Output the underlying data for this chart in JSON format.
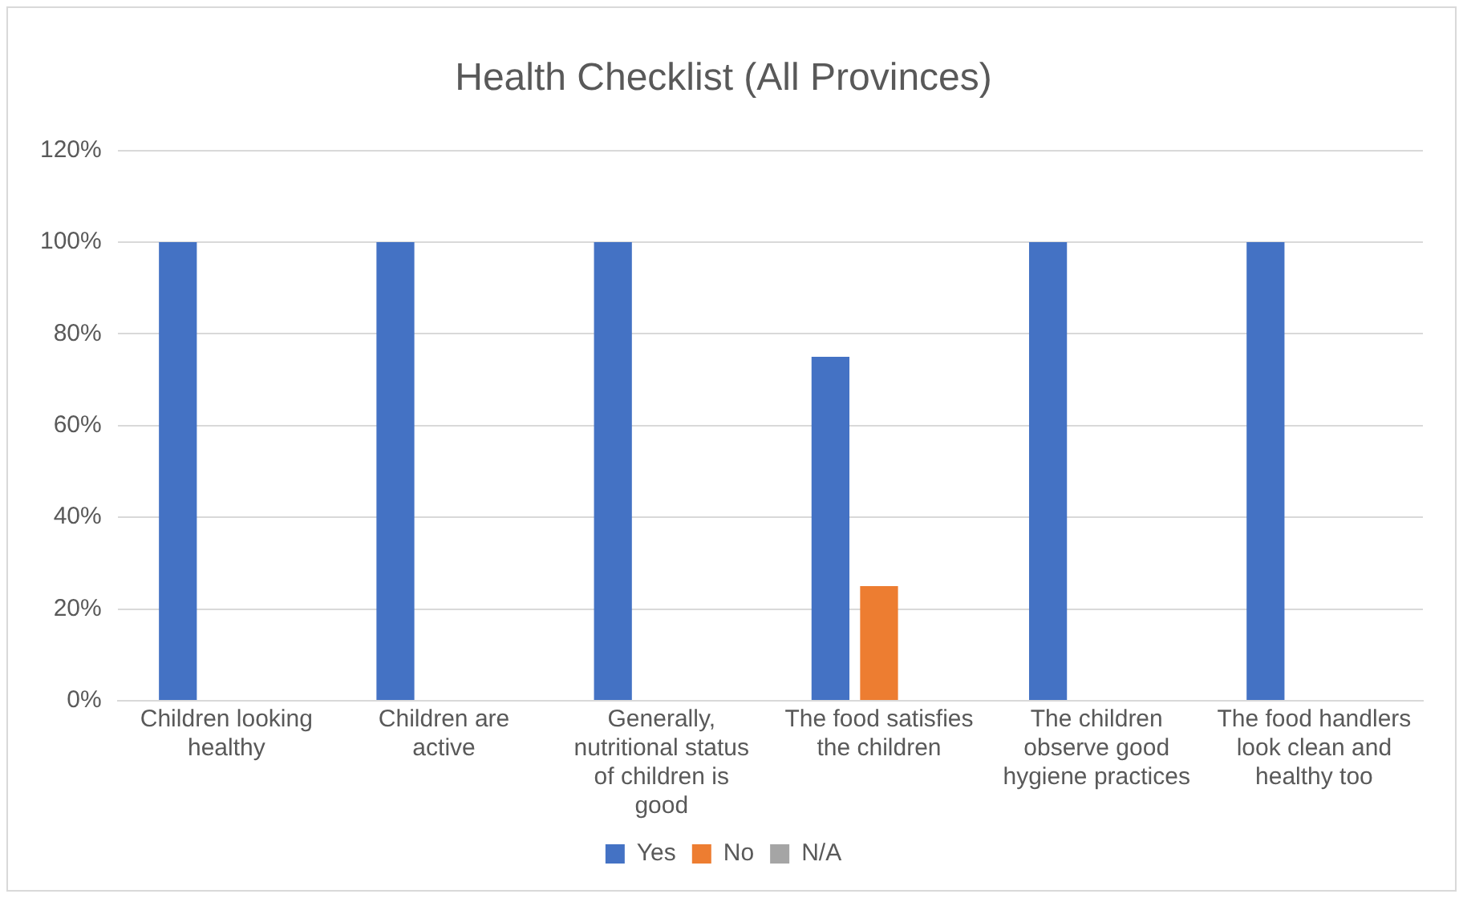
{
  "chart_data": {
    "type": "bar",
    "title": "Health Checklist (All Provinces)",
    "categories": [
      "Children looking healthy",
      "Children are active",
      "Generally, nutritional status of children is good",
      "The food satisfies the children",
      "The children observe good hygiene practices",
      "The food handlers look clean and healthy too"
    ],
    "series": [
      {
        "name": "Yes",
        "color": "#4472c4",
        "values": [
          100,
          100,
          100,
          75,
          100,
          100
        ]
      },
      {
        "name": "No",
        "color": "#ed7d31",
        "values": [
          0,
          0,
          0,
          25,
          0,
          0
        ]
      },
      {
        "name": "N/A",
        "color": "#a5a5a5",
        "values": [
          0,
          0,
          0,
          0,
          0,
          0
        ]
      }
    ],
    "ylim": [
      0,
      120
    ],
    "yticks": [
      {
        "value": 0,
        "label": "0%"
      },
      {
        "value": 20,
        "label": "20%"
      },
      {
        "value": 40,
        "label": "40%"
      },
      {
        "value": 60,
        "label": "60%"
      },
      {
        "value": 80,
        "label": "80%"
      },
      {
        "value": 100,
        "label": "100%"
      },
      {
        "value": 120,
        "label": "120%"
      }
    ],
    "grid": "y",
    "legend": "bottom"
  }
}
